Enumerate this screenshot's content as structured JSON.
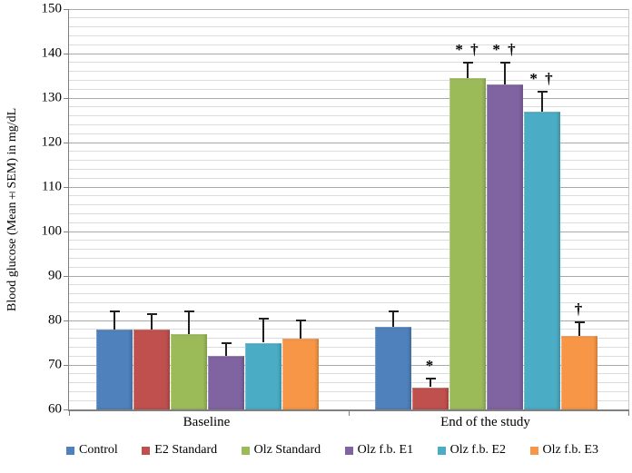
{
  "chart_data": {
    "type": "bar",
    "title": "",
    "ylabel": "Blood glucose (Mean±SEM) in mg/dL",
    "xlabel": "",
    "ylim": [
      60,
      150
    ],
    "y_major_step": 10,
    "y_minor_step": 2,
    "grid": true,
    "legend_position": "bottom",
    "categories": [
      "Baseline",
      "End of the study"
    ],
    "series": [
      {
        "name": "Control",
        "color": "#4F81BD",
        "values": [
          78.0,
          78.5
        ],
        "errors": [
          4.0,
          3.5
        ],
        "markers": [
          "",
          ""
        ]
      },
      {
        "name": "E2 Standard",
        "color": "#C0504D",
        "values": [
          78.0,
          65.0
        ],
        "errors": [
          3.5,
          2.0
        ],
        "markers": [
          "",
          "*"
        ]
      },
      {
        "name": "Olz Standard",
        "color": "#9BBB59",
        "values": [
          77.0,
          134.5
        ],
        "errors": [
          5.0,
          3.5
        ],
        "markers": [
          "",
          "* †"
        ]
      },
      {
        "name": "Olz f.b. E1",
        "color": "#8064A2",
        "values": [
          72.0,
          133.0
        ],
        "errors": [
          3.0,
          5.0
        ],
        "markers": [
          "",
          "* †"
        ]
      },
      {
        "name": "Olz f.b. E2",
        "color": "#4BACC6",
        "values": [
          75.0,
          127.0
        ],
        "errors": [
          5.5,
          4.5
        ],
        "markers": [
          "",
          "* †"
        ]
      },
      {
        "name": "Olz f.b. E3",
        "color": "#F79646",
        "values": [
          76.0,
          76.5
        ],
        "errors": [
          4.0,
          3.0
        ],
        "markers": [
          "",
          "†"
        ]
      }
    ]
  }
}
